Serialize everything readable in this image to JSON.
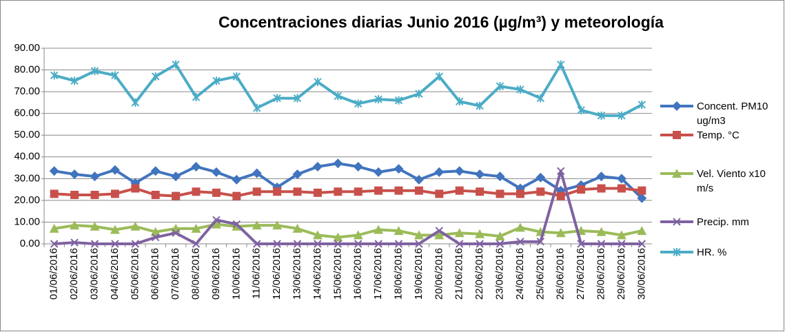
{
  "chart_data": {
    "type": "line",
    "title": "Concentraciones diarias Junio 2016 (µg/m³) y meteorología",
    "categories": [
      "01/06/2016",
      "02/06/2016",
      "03/06/2016",
      "04/06/2016",
      "05/06/2016",
      "06/06/2016",
      "07/06/2016",
      "08/06/2016",
      "09/06/2016",
      "10/06/2016",
      "11/06/2016",
      "12/06/2016",
      "13/06/2016",
      "14/06/2016",
      "15/06/2016",
      "16/06/2016",
      "17/06/2016",
      "18/06/2016",
      "19/06/2016",
      "20/06/2016",
      "21/06/2016",
      "22/06/2016",
      "23/06/2016",
      "24/06/2016",
      "25/06/2016",
      "26/06/2016",
      "27/06/2016",
      "28/06/2016",
      "29/06/2016",
      "30/06/2016"
    ],
    "series": [
      {
        "name": "Concent. PM10 ug/m3",
        "color": "#4174be",
        "marker": "diamond",
        "values": [
          33.5,
          32,
          31,
          34,
          28,
          33.5,
          31,
          35.5,
          33,
          29.5,
          32.5,
          26,
          32,
          35.5,
          37,
          35.5,
          33,
          34.5,
          29.5,
          33,
          33.5,
          32,
          31,
          25.5,
          30.5,
          24.5,
          27,
          31,
          30,
          21
        ]
      },
      {
        "name": "Temp. °C",
        "color": "#c8504b",
        "marker": "square",
        "values": [
          23,
          22.5,
          22.5,
          23,
          25.5,
          22.5,
          22,
          24,
          23.5,
          22,
          24,
          24,
          24,
          23.5,
          24,
          24,
          24.5,
          24.5,
          24.5,
          23,
          24.5,
          24,
          23,
          23,
          24,
          22,
          25,
          25.5,
          25.5,
          24.5
        ]
      },
      {
        "name": "Vel. Viento x10 m/s",
        "color": "#9bbb59",
        "marker": "triangle",
        "values": [
          7,
          8.5,
          8,
          6.5,
          8,
          5.5,
          7,
          7,
          9,
          8,
          8.5,
          8.5,
          7,
          4,
          3,
          4,
          6.5,
          6,
          4,
          4,
          5,
          4.5,
          3.5,
          7.5,
          5.5,
          5,
          6,
          5.5,
          4,
          6
        ]
      },
      {
        "name": "Precip. mm",
        "color": "#7f62a1",
        "marker": "x",
        "values": [
          0,
          0.6,
          0,
          0,
          0,
          3,
          5,
          0,
          11,
          9,
          0,
          0,
          0,
          0,
          0,
          0,
          0,
          0,
          0,
          6,
          0,
          0,
          0,
          1,
          1,
          33.5,
          0,
          0,
          0,
          0
        ]
      },
      {
        "name": "HR. %",
        "color": "#4bacc6",
        "marker": "star",
        "values": [
          77.5,
          75,
          79.5,
          77.5,
          65,
          77,
          82.5,
          67.5,
          75,
          77,
          62.5,
          67,
          67,
          74.5,
          68,
          64.5,
          66.5,
          66,
          69,
          77,
          65.5,
          63.5,
          72.5,
          71,
          67,
          82.5,
          61.5,
          59,
          59,
          64
        ]
      }
    ],
    "ylim": [
      0,
      90
    ],
    "yticks": [
      {
        "value": 0,
        "label": "0.00"
      },
      {
        "value": 10,
        "label": "10.00"
      },
      {
        "value": 20,
        "label": "20.00"
      },
      {
        "value": 30,
        "label": "30.00"
      },
      {
        "value": 40,
        "label": "40.00"
      },
      {
        "value": 50,
        "label": "50.00"
      },
      {
        "value": 60,
        "label": "60.00"
      },
      {
        "value": 70,
        "label": "70.00"
      },
      {
        "value": 80,
        "label": "80.00"
      },
      {
        "value": 90,
        "label": "90.00"
      }
    ],
    "grid": true,
    "legend": "right"
  }
}
